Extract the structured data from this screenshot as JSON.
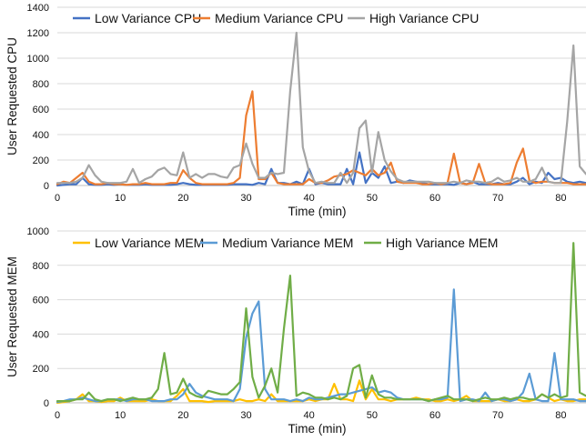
{
  "chart_data": [
    {
      "type": "line",
      "xlabel": "Time (min)",
      "ylabel": "User Requested CPU",
      "xlim": [
        0,
        84
      ],
      "ylim": [
        0,
        1400
      ],
      "xticks": [
        0,
        10,
        20,
        30,
        40,
        50,
        60,
        70,
        80
      ],
      "yticks": [
        0,
        200,
        400,
        600,
        800,
        1000,
        1200,
        1400
      ],
      "grid": "horizontal",
      "legend": "top-left",
      "series": [
        {
          "name": "Low Variance CPU",
          "color": "#4472c4",
          "x": [
            0,
            1,
            2,
            3,
            4,
            5,
            6,
            7,
            8,
            9,
            10,
            11,
            12,
            13,
            14,
            15,
            16,
            17,
            18,
            19,
            20,
            21,
            22,
            23,
            24,
            25,
            26,
            27,
            28,
            29,
            30,
            31,
            32,
            33,
            34,
            35,
            36,
            37,
            38,
            39,
            40,
            41,
            42,
            43,
            44,
            45,
            46,
            47,
            48,
            49,
            50,
            51,
            52,
            53,
            54,
            55,
            56,
            57,
            58,
            59,
            60,
            61,
            62,
            63,
            64,
            65,
            66,
            67,
            68,
            69,
            70,
            71,
            72,
            73,
            74,
            75,
            76,
            77,
            78,
            79,
            80,
            81,
            82,
            83,
            84
          ],
          "values": [
            0,
            5,
            10,
            10,
            60,
            10,
            5,
            5,
            10,
            5,
            10,
            5,
            5,
            5,
            10,
            5,
            5,
            5,
            5,
            10,
            20,
            10,
            5,
            5,
            5,
            5,
            5,
            5,
            10,
            10,
            10,
            5,
            20,
            10,
            130,
            20,
            20,
            10,
            30,
            10,
            130,
            10,
            20,
            10,
            10,
            10,
            130,
            10,
            260,
            20,
            100,
            60,
            150,
            20,
            30,
            20,
            40,
            30,
            20,
            10,
            10,
            10,
            10,
            5,
            20,
            10,
            30,
            10,
            10,
            10,
            20,
            10,
            10,
            30,
            60,
            10,
            30,
            20,
            100,
            50,
            60,
            30,
            20,
            30,
            20
          ]
        },
        {
          "name": "Medium Variance CPU",
          "color": "#ed7d31",
          "x": [
            0,
            1,
            2,
            3,
            4,
            5,
            6,
            7,
            8,
            9,
            10,
            11,
            12,
            13,
            14,
            15,
            16,
            17,
            18,
            19,
            20,
            21,
            22,
            23,
            24,
            25,
            26,
            27,
            28,
            29,
            30,
            31,
            32,
            33,
            34,
            35,
            36,
            37,
            38,
            39,
            40,
            41,
            42,
            43,
            44,
            45,
            46,
            47,
            48,
            49,
            50,
            51,
            52,
            53,
            54,
            55,
            56,
            57,
            58,
            59,
            60,
            61,
            62,
            63,
            64,
            65,
            66,
            67,
            68,
            69,
            70,
            71,
            72,
            73,
            74,
            75,
            76,
            77,
            78,
            79,
            80,
            81,
            82,
            83,
            84
          ],
          "values": [
            10,
            30,
            20,
            60,
            100,
            30,
            10,
            10,
            20,
            10,
            10,
            5,
            10,
            10,
            20,
            10,
            10,
            10,
            20,
            20,
            120,
            60,
            20,
            10,
            10,
            10,
            10,
            10,
            20,
            60,
            550,
            740,
            50,
            50,
            100,
            20,
            10,
            10,
            10,
            10,
            50,
            20,
            20,
            40,
            70,
            80,
            90,
            120,
            100,
            80,
            130,
            80,
            100,
            180,
            30,
            20,
            20,
            20,
            10,
            10,
            20,
            10,
            20,
            250,
            20,
            10,
            20,
            170,
            20,
            10,
            10,
            10,
            20,
            180,
            290,
            40,
            20,
            30,
            30,
            20,
            20,
            20,
            10,
            10,
            10
          ]
        },
        {
          "name": "High Variance CPU",
          "color": "#a5a5a5",
          "x": [
            0,
            1,
            2,
            3,
            4,
            5,
            6,
            7,
            8,
            9,
            10,
            11,
            12,
            13,
            14,
            15,
            16,
            17,
            18,
            19,
            20,
            21,
            22,
            23,
            24,
            25,
            26,
            27,
            28,
            29,
            30,
            31,
            32,
            33,
            34,
            35,
            36,
            37,
            38,
            39,
            40,
            41,
            42,
            43,
            44,
            45,
            46,
            47,
            48,
            49,
            50,
            51,
            52,
            53,
            54,
            55,
            56,
            57,
            58,
            59,
            60,
            61,
            62,
            63,
            64,
            65,
            66,
            67,
            68,
            69,
            70,
            71,
            72,
            73,
            74,
            75,
            76,
            77,
            78,
            79,
            80,
            81,
            82,
            83,
            84
          ],
          "values": [
            20,
            20,
            20,
            30,
            60,
            160,
            80,
            30,
            20,
            20,
            20,
            30,
            130,
            20,
            50,
            70,
            120,
            140,
            90,
            80,
            260,
            60,
            90,
            60,
            90,
            90,
            70,
            60,
            140,
            160,
            330,
            170,
            60,
            60,
            100,
            90,
            100,
            740,
            1200,
            300,
            110,
            20,
            30,
            20,
            20,
            100,
            20,
            100,
            450,
            510,
            100,
            420,
            200,
            110,
            50,
            30,
            30,
            30,
            30,
            30,
            20,
            20,
            20,
            30,
            20,
            40,
            30,
            30,
            20,
            30,
            60,
            30,
            40,
            60,
            30,
            30,
            50,
            140,
            30,
            20,
            20,
            500,
            1100,
            150,
            90
          ]
        }
      ]
    },
    {
      "type": "line",
      "xlabel": "Time (min)",
      "ylabel": "User Requested MEM",
      "xlim": [
        0,
        84
      ],
      "ylim": [
        0,
        1000
      ],
      "xticks": [
        0,
        10,
        20,
        30,
        40,
        50,
        60,
        70,
        80
      ],
      "yticks": [
        0,
        200,
        400,
        600,
        800,
        1000
      ],
      "grid": "horizontal",
      "legend": "top-left",
      "series": [
        {
          "name": "Low Variance MEM",
          "color": "#ffc000",
          "x": [
            0,
            1,
            2,
            3,
            4,
            5,
            6,
            7,
            8,
            9,
            10,
            11,
            12,
            13,
            14,
            15,
            16,
            17,
            18,
            19,
            20,
            21,
            22,
            23,
            24,
            25,
            26,
            27,
            28,
            29,
            30,
            31,
            32,
            33,
            34,
            35,
            36,
            37,
            38,
            39,
            40,
            41,
            42,
            43,
            44,
            45,
            46,
            47,
            48,
            49,
            50,
            51,
            52,
            53,
            54,
            55,
            56,
            57,
            58,
            59,
            60,
            61,
            62,
            63,
            64,
            65,
            66,
            67,
            68,
            69,
            70,
            71,
            72,
            73,
            74,
            75,
            76,
            77,
            78,
            79,
            80,
            81,
            82,
            83,
            84
          ],
          "values": [
            0,
            5,
            10,
            20,
            50,
            10,
            10,
            5,
            10,
            10,
            30,
            10,
            10,
            10,
            10,
            20,
            10,
            10,
            10,
            40,
            80,
            10,
            10,
            10,
            5,
            10,
            10,
            10,
            10,
            20,
            10,
            10,
            20,
            10,
            50,
            10,
            10,
            10,
            10,
            10,
            20,
            10,
            20,
            20,
            110,
            20,
            20,
            10,
            130,
            20,
            80,
            20,
            20,
            10,
            20,
            20,
            20,
            30,
            20,
            20,
            10,
            10,
            20,
            10,
            20,
            40,
            10,
            10,
            10,
            10,
            20,
            10,
            10,
            20,
            10,
            10,
            20,
            50,
            30,
            10,
            20,
            10,
            10,
            20,
            20
          ]
        },
        {
          "name": "Medium Variance MEM",
          "color": "#5b9bd5",
          "x": [
            0,
            1,
            2,
            3,
            4,
            5,
            6,
            7,
            8,
            9,
            10,
            11,
            12,
            13,
            14,
            15,
            16,
            17,
            18,
            19,
            20,
            21,
            22,
            23,
            24,
            25,
            26,
            27,
            28,
            29,
            30,
            31,
            32,
            33,
            34,
            35,
            36,
            37,
            38,
            39,
            40,
            41,
            42,
            43,
            44,
            45,
            46,
            47,
            48,
            49,
            50,
            51,
            52,
            53,
            54,
            55,
            56,
            57,
            58,
            59,
            60,
            61,
            62,
            63,
            64,
            65,
            66,
            67,
            68,
            69,
            70,
            71,
            72,
            73,
            74,
            75,
            76,
            77,
            78,
            79,
            80,
            81,
            82,
            83,
            84
          ],
          "values": [
            5,
            10,
            20,
            20,
            30,
            20,
            10,
            10,
            20,
            20,
            20,
            10,
            20,
            20,
            20,
            10,
            10,
            10,
            20,
            20,
            50,
            110,
            60,
            40,
            30,
            20,
            20,
            20,
            10,
            80,
            380,
            520,
            590,
            80,
            20,
            20,
            20,
            10,
            20,
            10,
            30,
            20,
            20,
            30,
            40,
            50,
            50,
            60,
            70,
            80,
            90,
            60,
            70,
            60,
            30,
            20,
            20,
            20,
            20,
            10,
            20,
            20,
            30,
            660,
            10,
            20,
            20,
            10,
            60,
            10,
            20,
            20,
            10,
            20,
            60,
            170,
            20,
            10,
            10,
            290,
            20,
            20,
            20,
            10,
            10
          ]
        },
        {
          "name": "High Variance MEM",
          "color": "#70ad47",
          "x": [
            0,
            1,
            2,
            3,
            4,
            5,
            6,
            7,
            8,
            9,
            10,
            11,
            12,
            13,
            14,
            15,
            16,
            17,
            18,
            19,
            20,
            21,
            22,
            23,
            24,
            25,
            26,
            27,
            28,
            29,
            30,
            31,
            32,
            33,
            34,
            35,
            36,
            37,
            38,
            39,
            40,
            41,
            42,
            43,
            44,
            45,
            46,
            47,
            48,
            49,
            50,
            51,
            52,
            53,
            54,
            55,
            56,
            57,
            58,
            59,
            60,
            61,
            62,
            63,
            64,
            65,
            66,
            67,
            68,
            69,
            70,
            71,
            72,
            73,
            74,
            75,
            76,
            77,
            78,
            79,
            80,
            81,
            82,
            83,
            84
          ],
          "values": [
            10,
            10,
            10,
            20,
            20,
            60,
            20,
            10,
            20,
            20,
            10,
            20,
            30,
            20,
            20,
            30,
            80,
            290,
            50,
            60,
            140,
            60,
            40,
            30,
            70,
            60,
            50,
            50,
            80,
            120,
            550,
            150,
            30,
            100,
            200,
            60,
            430,
            740,
            40,
            60,
            50,
            30,
            30,
            20,
            30,
            20,
            40,
            200,
            220,
            30,
            160,
            50,
            30,
            30,
            20,
            20,
            20,
            20,
            20,
            10,
            20,
            30,
            40,
            20,
            20,
            20,
            10,
            20,
            30,
            20,
            20,
            30,
            20,
            30,
            30,
            20,
            20,
            50,
            30,
            50,
            30,
            40,
            930,
            60,
            40
          ]
        }
      ]
    }
  ]
}
